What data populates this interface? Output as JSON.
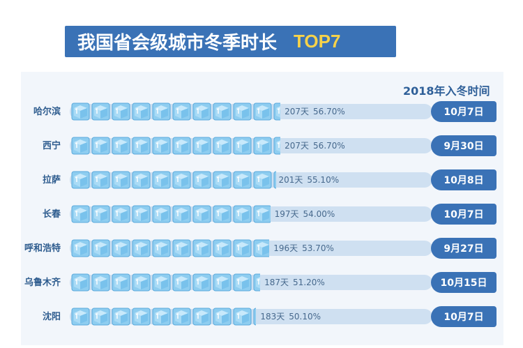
{
  "title": {
    "main": "我国省会级城市冬季时长",
    "badge": "TOP7"
  },
  "column_header": "2018年入冬时间",
  "colors": {
    "title_bg": "#3a72b6",
    "badge": "#f6d24a",
    "track": "#cfe0f1",
    "date_bg": "#3a72b6",
    "cube": "#8ecdf0"
  },
  "chart_data": {
    "type": "bar",
    "categories": [
      "哈尔滨",
      "西宁",
      "拉萨",
      "长春",
      "呼和浩特",
      "乌鲁木齐",
      "沈阳"
    ],
    "values": [
      207,
      207,
      201,
      197,
      196,
      187,
      183
    ],
    "value_labels": [
      "207天",
      "207天",
      "201天",
      "197天",
      "196天",
      "187天",
      "183天"
    ],
    "percent_labels": [
      "56.70%",
      "56.70%",
      "55.10%",
      "54.00%",
      "53.70%",
      "51.20%",
      "50.10%"
    ],
    "dates": [
      "10月7日",
      "9月30日",
      "10月8日",
      "10月7日",
      "9月27日",
      "10月15日",
      "10月7日"
    ],
    "title": "我国省会级城市冬季时长 TOP7"
  }
}
